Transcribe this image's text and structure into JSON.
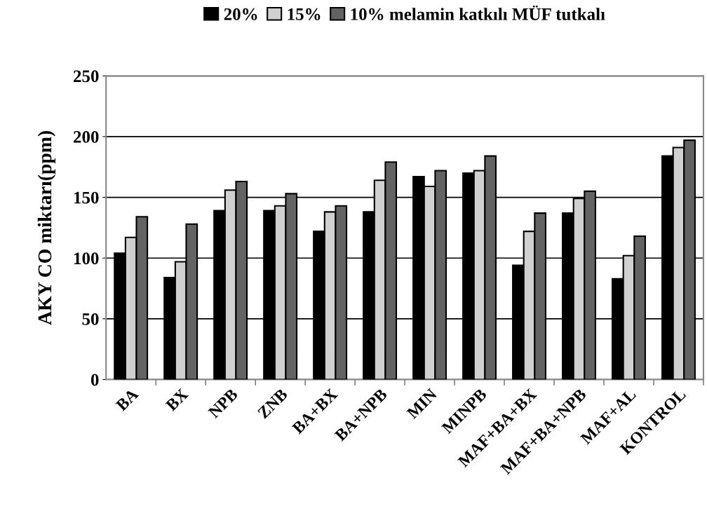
{
  "chart_data": {
    "type": "bar",
    "ylabel": "AKY CO miktarı(ppm)",
    "categories": [
      "BA",
      "BX",
      "NPB",
      "ZNB",
      "BA+BX",
      "BA+NPB",
      "MIN",
      "MINPB",
      "MAF+BA+BX",
      "MAF+BA+NPB",
      "MAF+AL",
      "KONTROL"
    ],
    "series": [
      {
        "name": "20%",
        "color": "#000000",
        "values": [
          104,
          84,
          139,
          139,
          122,
          138,
          167,
          170,
          94,
          137,
          83,
          184
        ]
      },
      {
        "name": "15%",
        "color": "#d0d0d0",
        "values": [
          117,
          97,
          156,
          143,
          138,
          164,
          159,
          172,
          122,
          149,
          102,
          191
        ]
      },
      {
        "name": "10% melamin katkılı MÜF tutkalı",
        "color": "#636363",
        "values": [
          134,
          128,
          163,
          153,
          143,
          179,
          172,
          184,
          137,
          155,
          118,
          197
        ]
      }
    ],
    "ylim": [
      0,
      250
    ],
    "yticks": [
      0,
      50,
      100,
      150,
      200,
      250
    ],
    "grid": "y",
    "legend": "top"
  }
}
